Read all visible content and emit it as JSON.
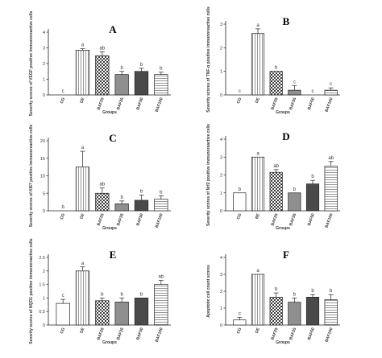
{
  "chart_data": [
    {
      "panel": "A",
      "type": "bar",
      "categories": [
        "CG",
        "DE",
        "BAF25",
        "BAF35",
        "BAF50",
        "BAF100"
      ],
      "values": [
        0,
        2.85,
        2.5,
        1.3,
        1.5,
        1.3
      ],
      "errors": [
        0,
        0.1,
        0.25,
        0.2,
        0.2,
        0.15
      ],
      "sig_labels": [
        "c",
        "a",
        "ab",
        "b",
        "b",
        "b"
      ],
      "ylabel": "Severity scores of VEGF positive immunoreactive cells",
      "xlabel": "Groups",
      "ylim": [
        0,
        4
      ],
      "yticks": [
        0,
        1,
        2,
        3,
        4
      ]
    },
    {
      "panel": "B",
      "type": "bar",
      "categories": [
        "CG",
        "DE",
        "BAF25",
        "BAF35",
        "BAF50",
        "BAF100"
      ],
      "values": [
        0,
        2.6,
        1.0,
        0.2,
        0,
        0.2
      ],
      "errors": [
        0,
        0.2,
        0,
        0.2,
        0,
        0.1
      ],
      "sig_labels": [
        "c",
        "a",
        "b",
        "c",
        "c",
        "c"
      ],
      "ylabel": "Severity scores of TNF-α positive immunoreactive cells",
      "xlabel": "Groups",
      "ylim": [
        0,
        3
      ],
      "yticks": [
        0,
        1,
        2,
        3
      ]
    },
    {
      "panel": "C",
      "type": "bar",
      "categories": [
        "CG",
        "DE",
        "BAF25",
        "BAF35",
        "BAF50",
        "BAF100"
      ],
      "values": [
        0,
        12.5,
        5.0,
        2.0,
        3.0,
        3.3
      ],
      "errors": [
        0,
        4.5,
        1.5,
        0.8,
        1.5,
        1.0
      ],
      "sig_labels": [
        "b",
        "a",
        "ab",
        "b",
        "b",
        "b"
      ],
      "ylabel": "Severity scores of KI67 positive immunoreactive cells",
      "xlabel": "Groups",
      "ylim": [
        0,
        20
      ],
      "yticks": [
        0,
        5,
        10,
        15,
        20
      ]
    },
    {
      "panel": "D",
      "type": "bar",
      "categories": [
        "CG",
        "BE",
        "BAF25",
        "BAF35",
        "BAF50",
        "BAF100"
      ],
      "values": [
        1.0,
        3.0,
        2.15,
        1.0,
        1.5,
        2.5
      ],
      "errors": [
        0,
        0,
        0.15,
        0,
        0.2,
        0.25
      ],
      "sig_labels": [
        "b",
        "a",
        "ab",
        "b",
        "b",
        "ab"
      ],
      "ylabel": "Severity scores of Nrf2 positive immunoreactive cells",
      "xlabel": "Groups",
      "ylim": [
        0,
        4
      ],
      "yticks": [
        0,
        1,
        2,
        3,
        4
      ]
    },
    {
      "panel": "E",
      "type": "bar",
      "categories": [
        "CG",
        "DE",
        "BAF25",
        "BAF35",
        "BAF50",
        "BAF100"
      ],
      "values": [
        0.8,
        2.0,
        0.9,
        0.85,
        1.0,
        1.5
      ],
      "errors": [
        0.15,
        0.15,
        0.1,
        0.15,
        0,
        0.15
      ],
      "sig_labels": [
        "c",
        "a",
        "b",
        "b",
        "b",
        "ab"
      ],
      "ylabel": "Severity scores of NQO1 positive immunoreactive cells",
      "xlabel": "Groups",
      "ylim": [
        0,
        2.5
      ],
      "yticks": [
        0,
        0.5,
        1,
        1.5,
        2,
        2.5
      ]
    },
    {
      "panel": "F",
      "type": "bar",
      "categories": [
        "CG",
        "DE",
        "BAF25",
        "BAF35",
        "BAF50",
        "BAF100"
      ],
      "values": [
        0.3,
        3.0,
        1.65,
        1.35,
        1.65,
        1.5
      ],
      "errors": [
        0.15,
        0,
        0.25,
        0.25,
        0.15,
        0.3
      ],
      "sig_labels": [
        "c",
        "a",
        "b",
        "b",
        "b",
        "b"
      ],
      "ylabel": "Apoptotic cell count scores",
      "xlabel": "Groups",
      "ylim": [
        0,
        4
      ],
      "yticks": [
        0,
        1,
        2,
        3,
        4
      ]
    }
  ]
}
